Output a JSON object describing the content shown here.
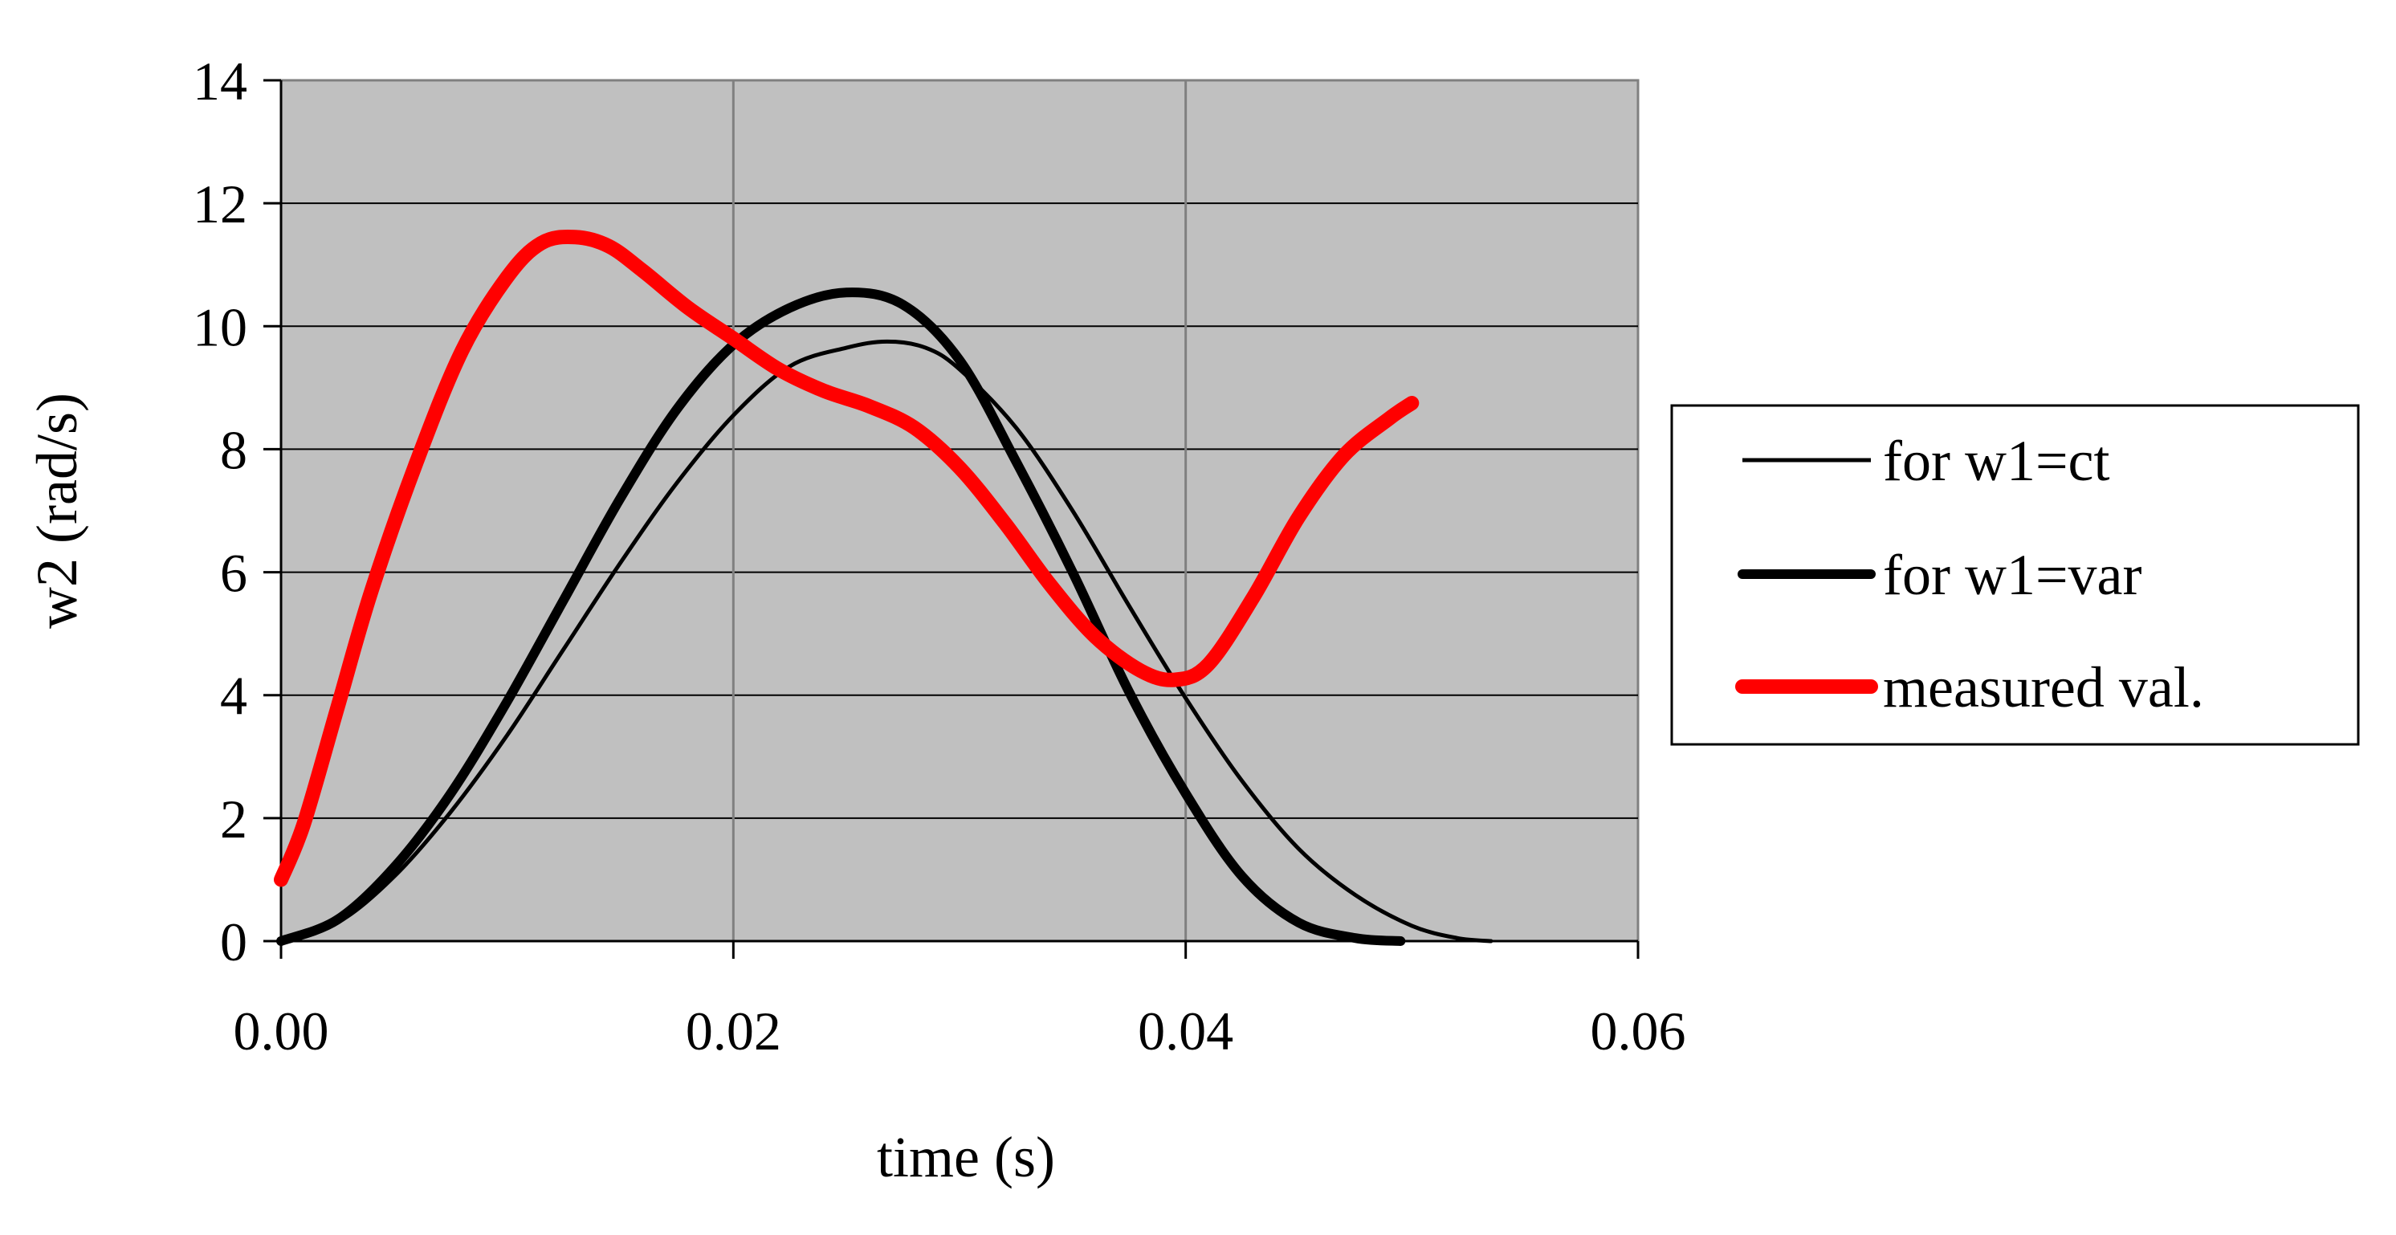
{
  "chart_data": {
    "type": "line",
    "xlabel": "time (s)",
    "ylabel": "w2 (rad/s)",
    "xlim": [
      0,
      0.06
    ],
    "ylim": [
      0,
      14
    ],
    "x_ticks": [
      "0.00",
      "0.02",
      "0.04",
      "0.06"
    ],
    "y_ticks": [
      "0",
      "2",
      "4",
      "6",
      "8",
      "10",
      "12",
      "14"
    ],
    "grid": "horizontal and vertical",
    "plot_background": "#c0c0c0",
    "legend_position": "right",
    "series": [
      {
        "name": "for w1=ct",
        "color": "#000000",
        "line": "thin",
        "x": [
          0,
          0.0025,
          0.005,
          0.0075,
          0.01,
          0.0125,
          0.015,
          0.0175,
          0.02,
          0.0225,
          0.025,
          0.0268,
          0.0285,
          0.03,
          0.0325,
          0.035,
          0.0375,
          0.04,
          0.0425,
          0.045,
          0.0475,
          0.05,
          0.052,
          0.0535
        ],
        "y": [
          0,
          0.3,
          1.05,
          2.1,
          3.35,
          4.75,
          6.15,
          7.45,
          8.55,
          9.35,
          9.65,
          9.75,
          9.65,
          9.3,
          8.35,
          7.0,
          5.45,
          3.95,
          2.6,
          1.5,
          0.75,
          0.25,
          0.05,
          0
        ]
      },
      {
        "name": "for w1=var",
        "color": "#000000",
        "line": "thick",
        "x": [
          0,
          0.0025,
          0.005,
          0.0075,
          0.01,
          0.0125,
          0.015,
          0.0175,
          0.02,
          0.0225,
          0.025,
          0.0275,
          0.03,
          0.0325,
          0.035,
          0.0375,
          0.04,
          0.0425,
          0.045,
          0.0475,
          0.0495
        ],
        "y": [
          0,
          0.35,
          1.2,
          2.4,
          3.9,
          5.55,
          7.2,
          8.65,
          9.7,
          10.3,
          10.55,
          10.35,
          9.45,
          7.8,
          6.0,
          4.05,
          2.4,
          1.05,
          0.3,
          0.05,
          0
        ]
      },
      {
        "name": "measured val.",
        "color": "#ff0000",
        "line": "thickest",
        "x": [
          0,
          0.001,
          0.0025,
          0.004,
          0.006,
          0.008,
          0.01,
          0.0115,
          0.013,
          0.0145,
          0.016,
          0.018,
          0.02,
          0.022,
          0.024,
          0.026,
          0.028,
          0.03,
          0.032,
          0.034,
          0.036,
          0.038,
          0.0395,
          0.041,
          0.043,
          0.045,
          0.047,
          0.049,
          0.05
        ],
        "y": [
          1.0,
          1.9,
          3.8,
          5.7,
          7.8,
          9.6,
          10.8,
          11.35,
          11.45,
          11.3,
          10.9,
          10.3,
          9.8,
          9.3,
          8.95,
          8.7,
          8.35,
          7.7,
          6.8,
          5.8,
          4.95,
          4.4,
          4.25,
          4.5,
          5.6,
          6.9,
          7.9,
          8.5,
          8.75
        ]
      }
    ]
  }
}
